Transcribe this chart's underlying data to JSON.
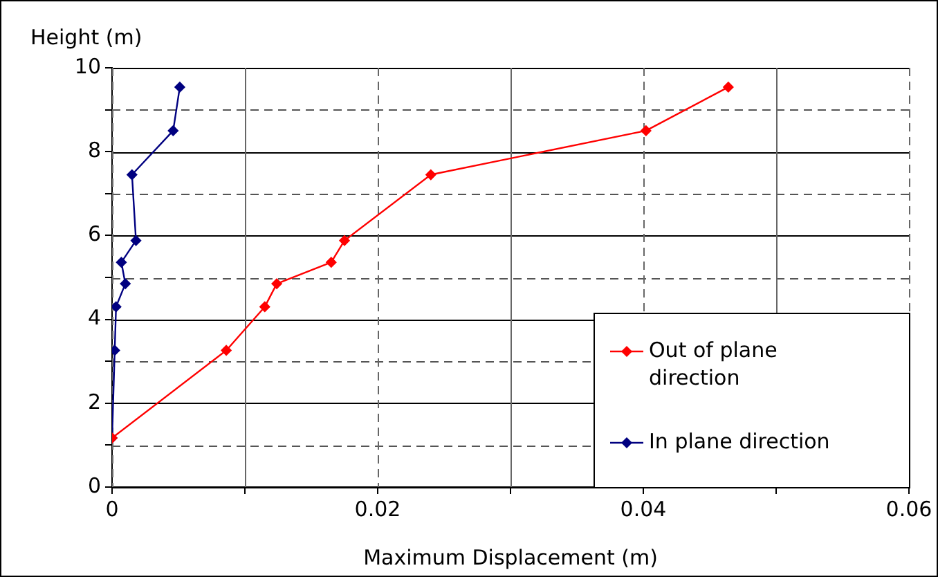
{
  "chart_data": {
    "type": "line",
    "xlabel": "Maximum Displacement (m)",
    "ylabel": "Height (m)",
    "xlim": [
      0,
      0.06
    ],
    "xticks": [
      0,
      {
        "value": 0.01,
        "label": null
      },
      0.02,
      {
        "value": 0.03,
        "label": null
      },
      0.04,
      {
        "value": 0.05,
        "label": null
      },
      0.06
    ],
    "ylim": [
      0,
      10
    ],
    "yticks": [
      0,
      {
        "value": 1,
        "label": null
      },
      2,
      {
        "value": 3,
        "label": null
      },
      4,
      {
        "value": 5,
        "label": null
      },
      6,
      {
        "value": 7,
        "label": null
      },
      8,
      {
        "value": 9,
        "label": null
      },
      10
    ],
    "grid": true,
    "legend": "bottom right",
    "marker": "diamond",
    "line_style": "solid",
    "series": [
      {
        "name": "Out of plane direction",
        "color": "#ff0000",
        "x": [
          0,
          0.0086,
          0.0115,
          0.0124,
          0.0165,
          0.0175,
          0.024,
          0.0402,
          0.0464
        ],
        "values": [
          1.17,
          3.26,
          4.3,
          4.85,
          5.36,
          5.88,
          7.45,
          8.5,
          9.54
        ]
      },
      {
        "name": "In plane direction",
        "color": "#000080",
        "x": [
          0,
          0.0002,
          0.0003,
          0.001,
          0.0007,
          0.0018,
          0.0015,
          0.0046,
          0.0051
        ],
        "values": [
          1.17,
          3.26,
          4.3,
          4.85,
          5.36,
          5.88,
          7.45,
          8.5,
          9.54
        ]
      }
    ]
  }
}
